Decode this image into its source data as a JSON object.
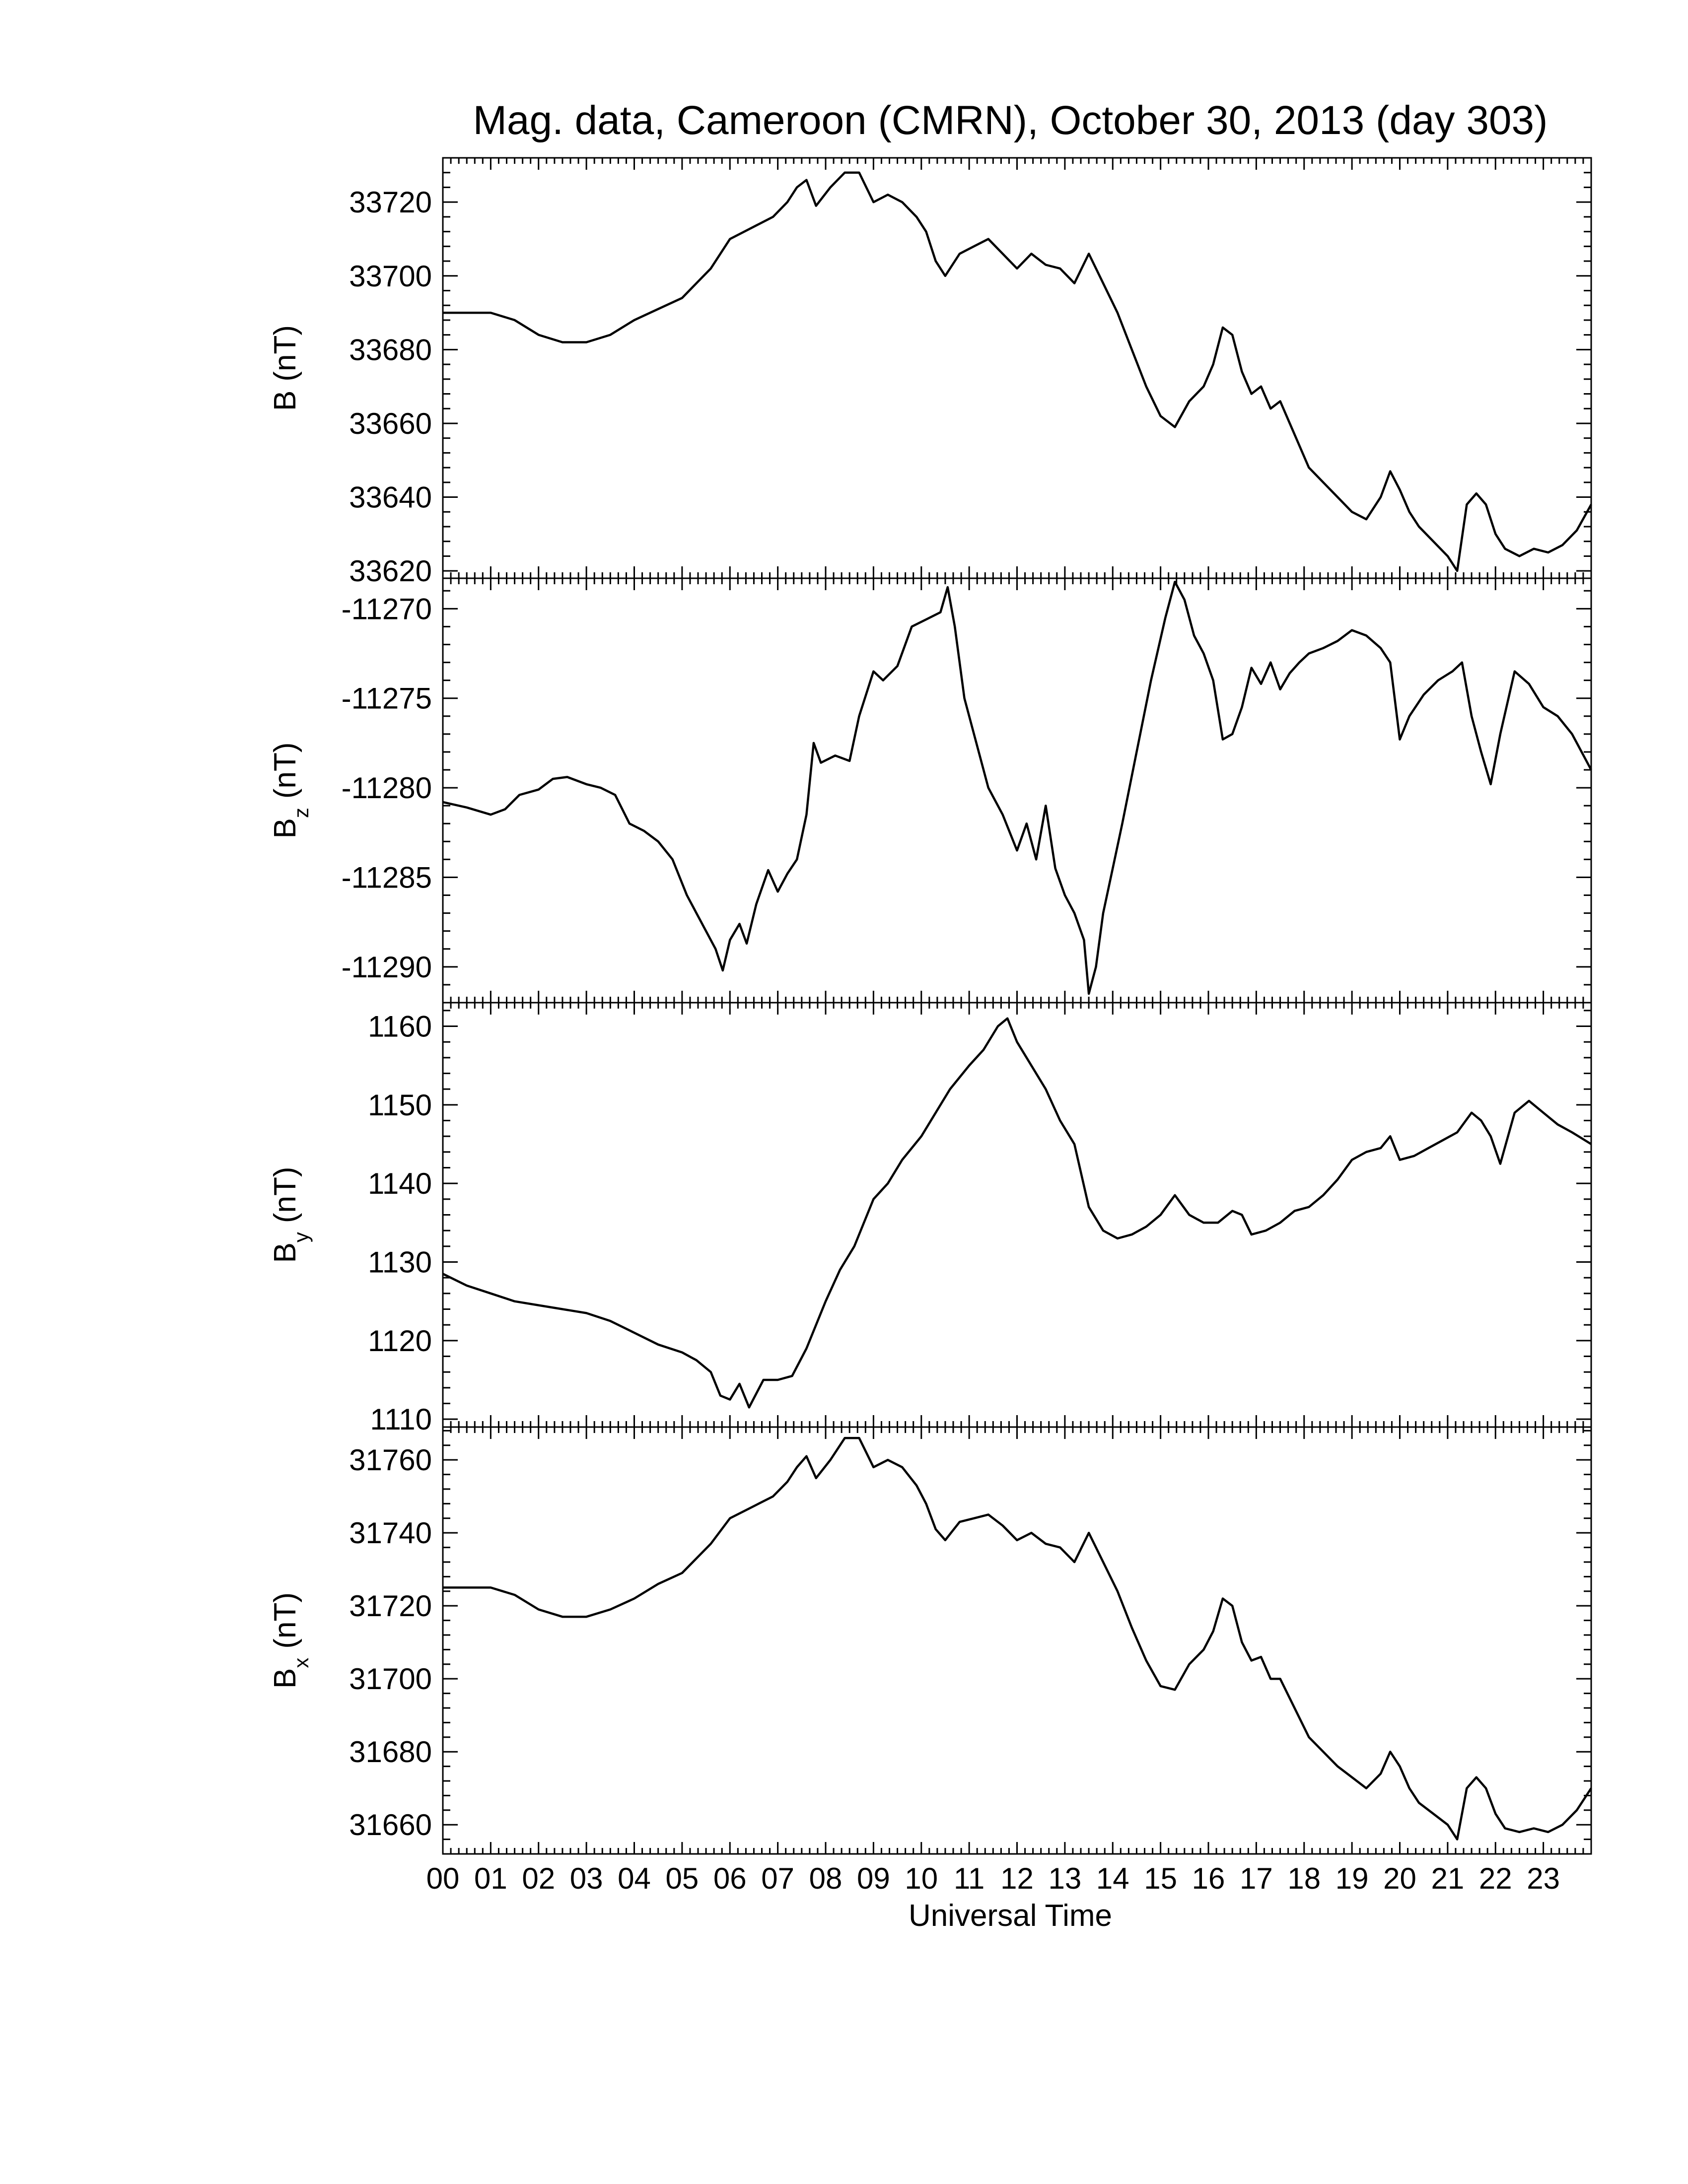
{
  "title": "Mag. data, Cameroon (CMRN), October 30, 2013 (day 303)",
  "xlabel": "Universal Time",
  "chart_data": [
    {
      "type": "line",
      "ylabel": "B (nT)",
      "ylabel_main": "B",
      "ylabel_sub": "",
      "ylabel_unit": "(nT)",
      "ylim": [
        33618,
        33732
      ],
      "yticks": [
        33620,
        33640,
        33660,
        33680,
        33700,
        33720
      ],
      "xlim": [
        0,
        24
      ],
      "x": [
        0,
        0.5,
        1,
        1.5,
        2,
        2.5,
        3,
        3.5,
        4,
        4.5,
        5,
        5.3,
        5.6,
        6,
        6.3,
        6.6,
        6.9,
        7.2,
        7.4,
        7.6,
        7.8,
        8.1,
        8.4,
        8.7,
        9,
        9.3,
        9.6,
        9.9,
        10.1,
        10.3,
        10.5,
        10.8,
        11.1,
        11.4,
        11.7,
        12,
        12.3,
        12.6,
        12.9,
        13.2,
        13.5,
        13.8,
        14.1,
        14.4,
        14.7,
        15,
        15.3,
        15.6,
        15.9,
        16.1,
        16.3,
        16.5,
        16.7,
        16.9,
        17.1,
        17.3,
        17.5,
        17.8,
        18.1,
        18.4,
        18.7,
        19,
        19.3,
        19.6,
        19.8,
        20,
        20.2,
        20.4,
        20.7,
        21,
        21.2,
        21.4,
        21.6,
        21.8,
        22,
        22.2,
        22.5,
        22.8,
        23.1,
        23.4,
        23.7,
        24
      ],
      "y": [
        33690,
        33690,
        33690,
        33688,
        33684,
        33682,
        33682,
        33684,
        33688,
        33691,
        33694,
        33698,
        33702,
        33710,
        33712,
        33714,
        33716,
        33720,
        33724,
        33726,
        33719,
        33724,
        33728,
        33728,
        33720,
        33722,
        33720,
        33716,
        33712,
        33704,
        33700,
        33706,
        33708,
        33710,
        33706,
        33702,
        33706,
        33703,
        33702,
        33698,
        33706,
        33698,
        33690,
        33680,
        33670,
        33662,
        33659,
        33666,
        33670,
        33676,
        33686,
        33684,
        33674,
        33668,
        33670,
        33664,
        33666,
        33657,
        33648,
        33644,
        33640,
        33636,
        33634,
        33640,
        33647,
        33642,
        33636,
        33632,
        33628,
        33624,
        33620,
        33638,
        33641,
        33638,
        33630,
        33626,
        33624,
        33626,
        33625,
        33627,
        33631,
        33638
      ]
    },
    {
      "type": "line",
      "ylabel": "Bz (nT)",
      "ylabel_main": "B",
      "ylabel_sub": "z",
      "ylabel_unit": "(nT)",
      "ylim": [
        -11292,
        -11268.3
      ],
      "yticks": [
        -11270,
        -11275,
        -11280,
        -11285,
        -11290
      ],
      "xlim": [
        0,
        24
      ],
      "x": [
        0,
        0.5,
        1,
        1.3,
        1.6,
        2,
        2.3,
        2.6,
        3,
        3.3,
        3.6,
        3.9,
        4.2,
        4.5,
        4.8,
        5.1,
        5.4,
        5.7,
        5.85,
        6,
        6.2,
        6.35,
        6.55,
        6.8,
        7,
        7.2,
        7.4,
        7.6,
        7.75,
        7.9,
        8.2,
        8.5,
        8.7,
        9,
        9.2,
        9.5,
        9.8,
        10.1,
        10.4,
        10.55,
        10.7,
        10.9,
        11.1,
        11.4,
        11.7,
        12,
        12.2,
        12.4,
        12.6,
        12.8,
        13,
        13.2,
        13.4,
        13.5,
        13.65,
        13.8,
        14,
        14.2,
        14.5,
        14.8,
        15.1,
        15.3,
        15.5,
        15.7,
        15.9,
        16.1,
        16.3,
        16.5,
        16.7,
        16.9,
        17.1,
        17.3,
        17.5,
        17.7,
        17.9,
        18.1,
        18.4,
        18.7,
        19,
        19.3,
        19.6,
        19.8,
        20,
        20.2,
        20.5,
        20.8,
        21.1,
        21.3,
        21.5,
        21.7,
        21.9,
        22.1,
        22.4,
        22.7,
        23,
        23.3,
        23.6,
        24
      ],
      "y": [
        -11280.8,
        -11281.1,
        -11281.5,
        -11281.2,
        -11280.4,
        -11280.1,
        -11279.5,
        -11279.4,
        -11279.8,
        -11280.0,
        -11280.4,
        -11282.0,
        -11282.4,
        -11283.0,
        -11284.0,
        -11286.0,
        -11287.5,
        -11289.0,
        -11290.2,
        -11288.5,
        -11287.6,
        -11288.7,
        -11286.5,
        -11284.6,
        -11285.8,
        -11284.8,
        -11284.0,
        -11281.5,
        -11277.5,
        -11278.6,
        -11278.2,
        -11278.5,
        -11276.0,
        -11273.5,
        -11274.0,
        -11273.2,
        -11271.0,
        -11270.6,
        -11270.2,
        -11268.8,
        -11271.0,
        -11275.0,
        -11277.0,
        -11280.0,
        -11281.5,
        -11283.5,
        -11282.0,
        -11284.0,
        -11281.0,
        -11284.5,
        -11286.0,
        -11287.0,
        -11288.5,
        -11291.5,
        -11290.0,
        -11287.0,
        -11284.5,
        -11282.0,
        -11278.0,
        -11274.0,
        -11270.5,
        -11268.5,
        -11269.5,
        -11271.5,
        -11272.5,
        -11274.0,
        -11277.3,
        -11277.0,
        -11275.5,
        -11273.3,
        -11274.2,
        -11273.0,
        -11274.5,
        -11273.6,
        -11273.0,
        -11272.5,
        -11272.2,
        -11271.8,
        -11271.2,
        -11271.5,
        -11272.2,
        -11273.0,
        -11277.3,
        -11276.0,
        -11274.8,
        -11274.0,
        -11273.5,
        -11273.0,
        -11276.0,
        -11278.0,
        -11279.8,
        -11277.0,
        -11273.5,
        -11274.2,
        -11275.5,
        -11276.0,
        -11277.0,
        -11279.0
      ]
    },
    {
      "type": "line",
      "ylabel": "By (nT)",
      "ylabel_main": "B",
      "ylabel_sub": "y",
      "ylabel_unit": "(nT)",
      "ylim": [
        1109,
        1163
      ],
      "yticks": [
        1110,
        1120,
        1130,
        1140,
        1150,
        1160
      ],
      "xlim": [
        0,
        24
      ],
      "x": [
        0,
        0.5,
        1,
        1.5,
        2,
        2.5,
        3,
        3.5,
        4,
        4.5,
        5,
        5.3,
        5.6,
        5.8,
        6,
        6.2,
        6.4,
        6.7,
        7,
        7.3,
        7.6,
        8,
        8.3,
        8.6,
        9,
        9.3,
        9.6,
        10,
        10.3,
        10.6,
        11,
        11.3,
        11.6,
        11.8,
        12,
        12.3,
        12.6,
        12.9,
        13.2,
        13.5,
        13.8,
        14.1,
        14.4,
        14.7,
        15,
        15.3,
        15.6,
        15.9,
        16.2,
        16.5,
        16.7,
        16.9,
        17.2,
        17.5,
        17.8,
        18.1,
        18.4,
        18.7,
        19,
        19.3,
        19.6,
        19.8,
        20,
        20.3,
        20.6,
        20.9,
        21.2,
        21.5,
        21.7,
        21.9,
        22.1,
        22.4,
        22.7,
        23,
        23.3,
        23.6,
        24
      ],
      "y": [
        1128.5,
        1127,
        1126,
        1125,
        1124.5,
        1124,
        1123.5,
        1122.5,
        1121,
        1119.5,
        1118.5,
        1117.5,
        1116,
        1113,
        1112.5,
        1114.5,
        1111.5,
        1115,
        1115,
        1115.5,
        1119,
        1125,
        1129,
        1132,
        1138,
        1140,
        1143,
        1146,
        1149,
        1152,
        1155,
        1157,
        1160,
        1161,
        1158,
        1155,
        1152,
        1148,
        1145,
        1137,
        1134,
        1133,
        1133.5,
        1134.5,
        1136,
        1138.5,
        1136,
        1135,
        1135,
        1136.5,
        1136,
        1133.5,
        1134,
        1135,
        1136.5,
        1137,
        1138.5,
        1140.5,
        1143,
        1144,
        1144.5,
        1146,
        1143,
        1143.5,
        1144.5,
        1145.5,
        1146.5,
        1149,
        1148,
        1146,
        1142.5,
        1149,
        1150.5,
        1149,
        1147.5,
        1146.5,
        1145
      ]
    },
    {
      "type": "line",
      "ylabel": "Bx (nT)",
      "ylabel_main": "B",
      "ylabel_sub": "x",
      "ylabel_unit": "(nT)",
      "ylim": [
        31652,
        31769
      ],
      "yticks": [
        31660,
        31680,
        31700,
        31720,
        31740,
        31760
      ],
      "xlim": [
        0,
        24
      ],
      "x": [
        0,
        0.5,
        1,
        1.5,
        2,
        2.5,
        3,
        3.5,
        4,
        4.5,
        5,
        5.3,
        5.6,
        6,
        6.3,
        6.6,
        6.9,
        7.2,
        7.4,
        7.6,
        7.8,
        8.1,
        8.4,
        8.7,
        9,
        9.3,
        9.6,
        9.9,
        10.1,
        10.3,
        10.5,
        10.8,
        11.1,
        11.4,
        11.7,
        12,
        12.3,
        12.6,
        12.9,
        13.2,
        13.5,
        13.8,
        14.1,
        14.4,
        14.7,
        15,
        15.3,
        15.6,
        15.9,
        16.1,
        16.3,
        16.5,
        16.7,
        16.9,
        17.1,
        17.3,
        17.5,
        17.8,
        18.1,
        18.4,
        18.7,
        19,
        19.3,
        19.6,
        19.8,
        20,
        20.2,
        20.4,
        20.7,
        21,
        21.2,
        21.4,
        21.6,
        21.8,
        22,
        22.2,
        22.5,
        22.8,
        23.1,
        23.4,
        23.7,
        24
      ],
      "y": [
        31725,
        31725,
        31725,
        31723,
        31719,
        31717,
        31717,
        31719,
        31722,
        31726,
        31729,
        31733,
        31737,
        31744,
        31746,
        31748,
        31750,
        31754,
        31758,
        31761,
        31755,
        31760,
        31766,
        31766,
        31758,
        31760,
        31758,
        31753,
        31748,
        31741,
        31738,
        31743,
        31744,
        31745,
        31742,
        31738,
        31740,
        31737,
        31736,
        31732,
        31740,
        31732,
        31724,
        31714,
        31705,
        31698,
        31697,
        31704,
        31708,
        31713,
        31722,
        31720,
        31710,
        31705,
        31706,
        31700,
        31700,
        31692,
        31684,
        31680,
        31676,
        31673,
        31670,
        31674,
        31680,
        31676,
        31670,
        31666,
        31663,
        31660,
        31656,
        31670,
        31673,
        31670,
        31663,
        31659,
        31658,
        31659,
        31658,
        31660,
        31664,
        31670
      ]
    }
  ],
  "xticks": {
    "values": [
      0,
      1,
      2,
      3,
      4,
      5,
      6,
      7,
      8,
      9,
      10,
      11,
      12,
      13,
      14,
      15,
      16,
      17,
      18,
      19,
      20,
      21,
      22,
      23
    ],
    "labels": [
      "00",
      "01",
      "02",
      "03",
      "04",
      "05",
      "06",
      "07",
      "08",
      "09",
      "10",
      "11",
      "12",
      "13",
      "14",
      "15",
      "16",
      "17",
      "18",
      "19",
      "20",
      "21",
      "22",
      "23"
    ]
  }
}
